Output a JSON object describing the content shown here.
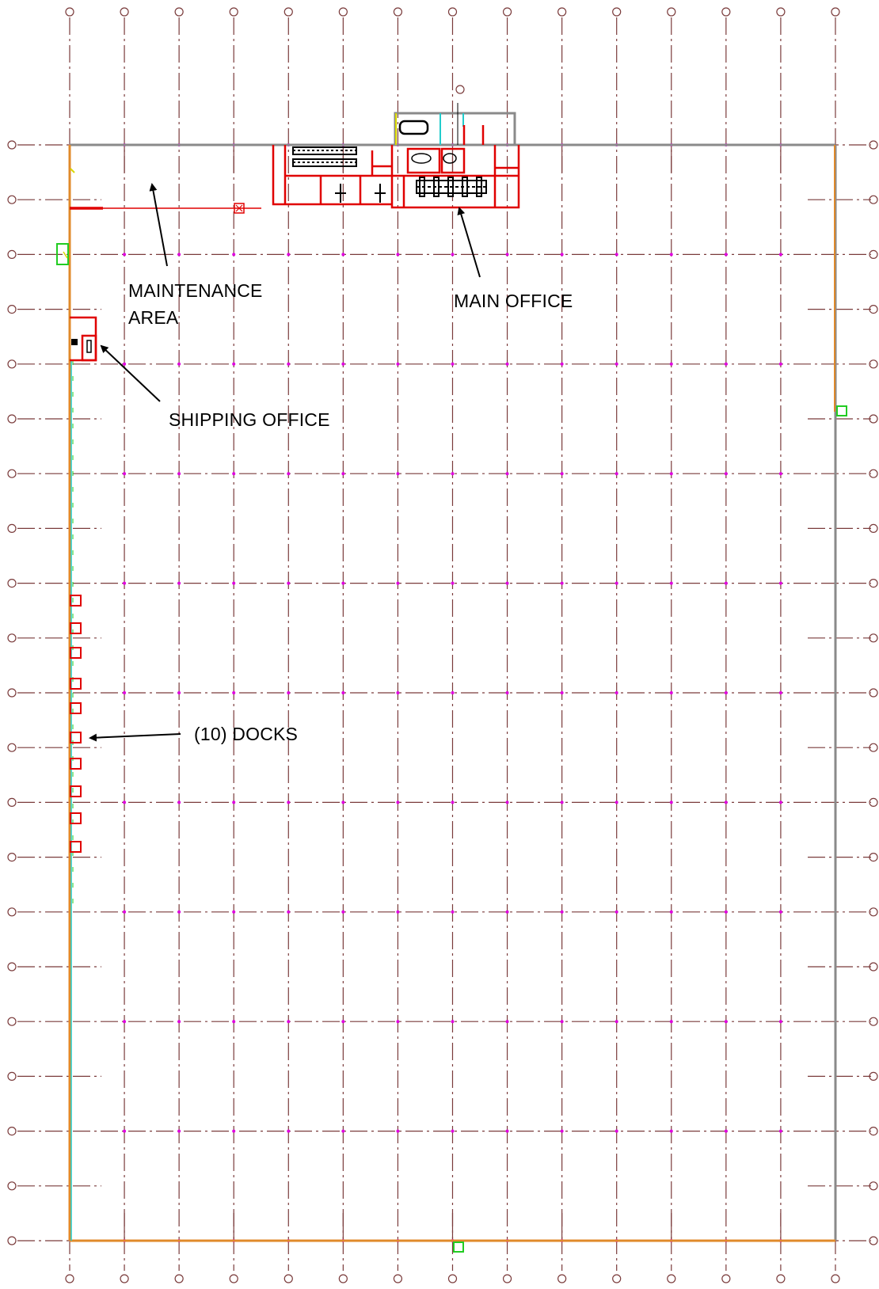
{
  "labels": {
    "maintenance_line1": "MAINTENANCE",
    "maintenance_line2": "AREA",
    "main_office": "MAIN OFFICE",
    "shipping_office": "SHIPPING OFFICE",
    "docks": "(10) DOCKS"
  },
  "plan": {
    "dock_count": 10,
    "vertical_gridline_count": 15,
    "horizontal_gridline_count": 21
  },
  "colors": {
    "gridline": "#7a3b3b",
    "column_marker": "#e000e0",
    "wall_gray": "#8a8a8a",
    "wall_orange": "#e08a2a",
    "office_red": "#e00000",
    "accent_green": "#22cc22",
    "accent_cyan": "#22cccc",
    "accent_yellow": "#d8d800",
    "text": "#000000"
  }
}
